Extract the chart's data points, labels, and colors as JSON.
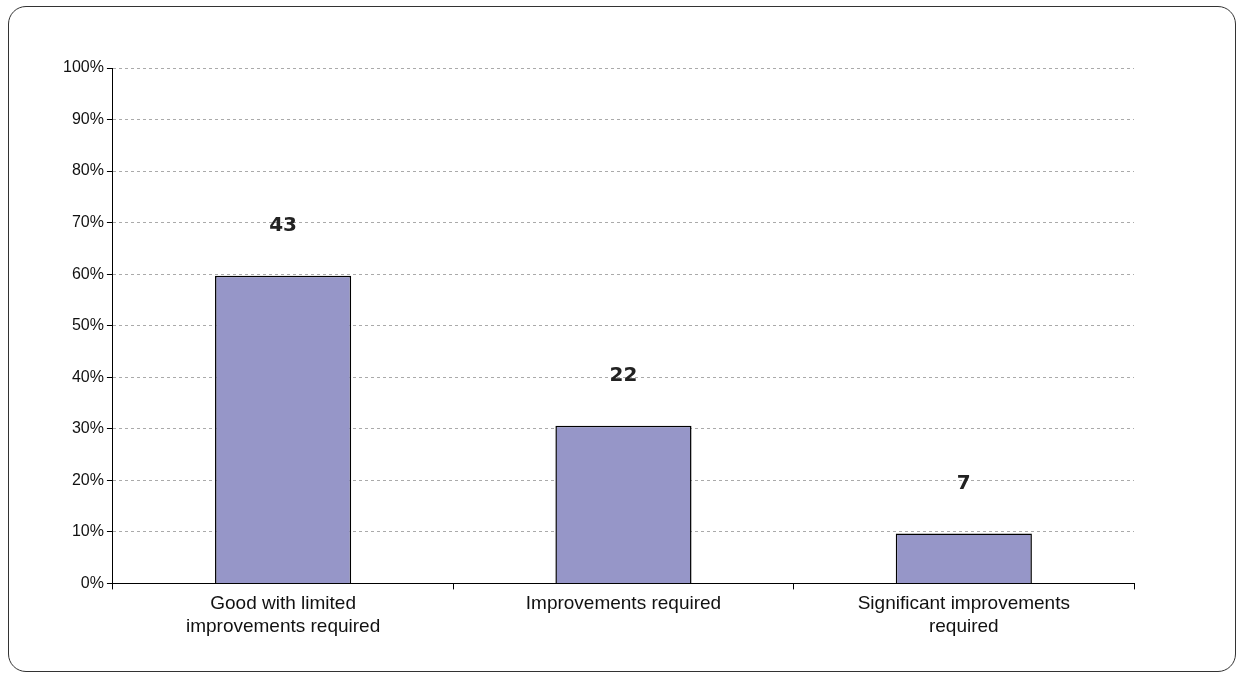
{
  "chart_data": {
    "type": "bar",
    "categories": [
      "Good with limited improvements required",
      "Improvements required",
      "Significant improvements required"
    ],
    "values": [
      59.7,
      30.6,
      9.7
    ],
    "color": "#9696c8",
    "annotations": [
      {
        "text": "43",
        "x": "Good with limited improvements required",
        "y": 59.7
      },
      {
        "text": "22",
        "x": "Improvements required",
        "y": 30.6
      },
      {
        "text": "7",
        "x": "Significant improvements required",
        "y": 9.7
      }
    ],
    "ylim": [
      0,
      100
    ],
    "yticks": [
      {
        "value": 0,
        "label": "0%"
      },
      {
        "value": 10,
        "label": "10%"
      },
      {
        "value": 20,
        "label": "20%"
      },
      {
        "value": 30,
        "label": "30%"
      },
      {
        "value": 40,
        "label": "40%"
      },
      {
        "value": 50,
        "label": "50%"
      },
      {
        "value": 60,
        "label": "60%"
      },
      {
        "value": 70,
        "label": "70%"
      },
      {
        "value": 80,
        "label": "80%"
      },
      {
        "value": 90,
        "label": "90%"
      },
      {
        "value": 100,
        "label": "100%"
      }
    ],
    "grid": "y",
    "legend": false
  }
}
